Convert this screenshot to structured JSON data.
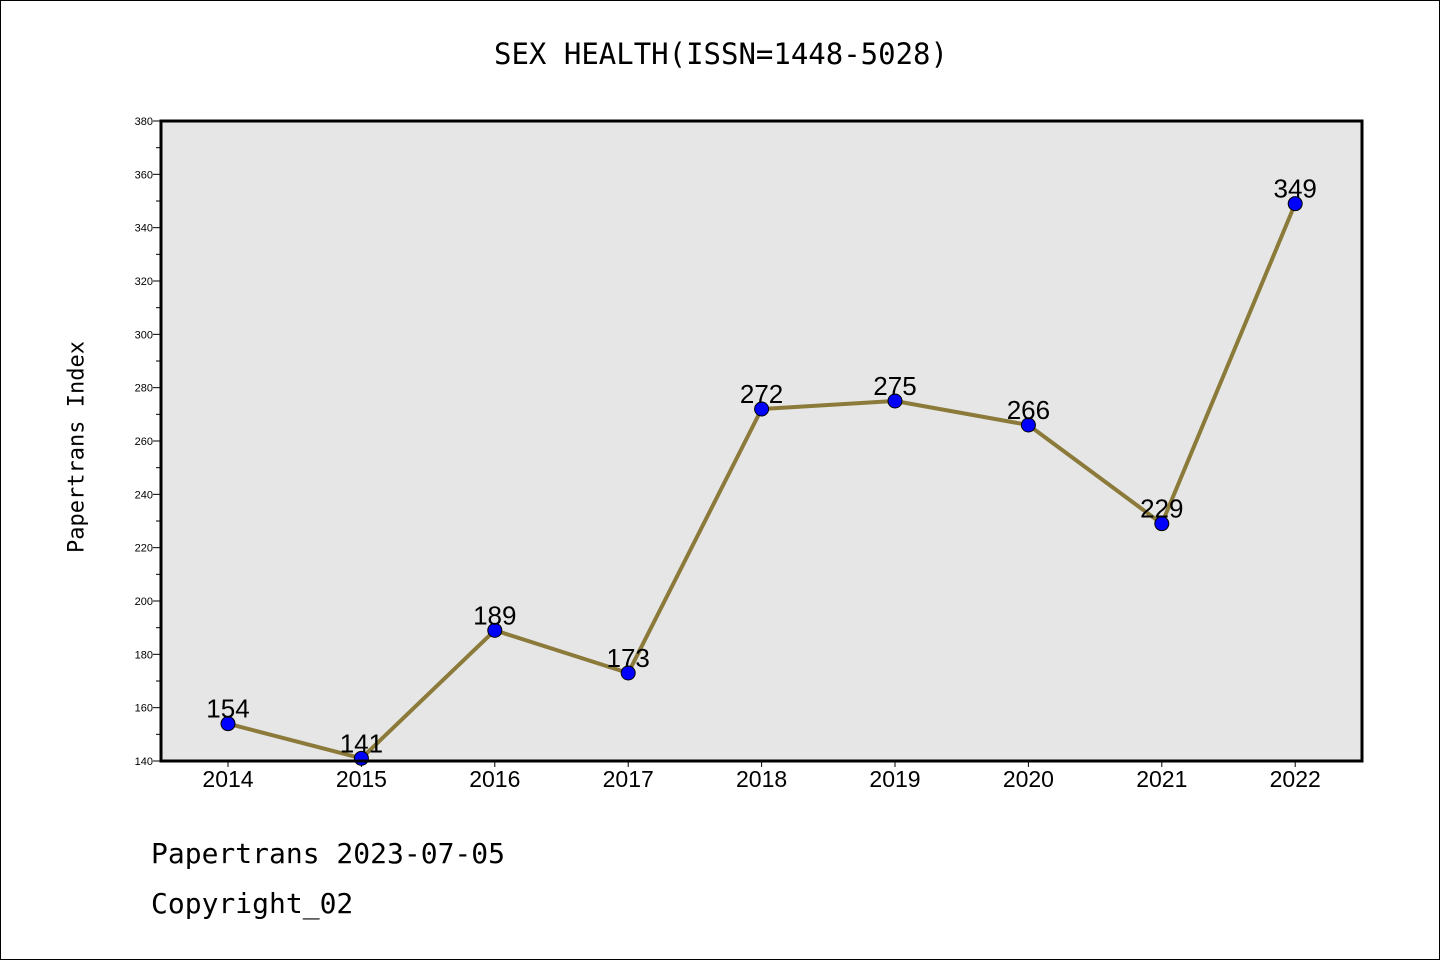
{
  "title": "SEX HEALTH(ISSN=1448-5028)",
  "footer": {
    "date_line": "Papertrans 2023-07-05",
    "copyright": "Copyright_02"
  },
  "chart_data": {
    "type": "line",
    "title": "SEX HEALTH(ISSN=1448-5028)",
    "xlabel": "",
    "ylabel": "Papertrans Index",
    "categories": [
      "2014",
      "2015",
      "2016",
      "2017",
      "2018",
      "2019",
      "2020",
      "2021",
      "2022"
    ],
    "values": [
      154,
      141,
      189,
      173,
      272,
      275,
      266,
      229,
      349
    ],
    "ylim": [
      140,
      380
    ],
    "yticks": [
      140,
      160,
      180,
      200,
      220,
      240,
      260,
      280,
      300,
      320,
      340,
      360,
      380
    ],
    "grid": false,
    "legend": "none",
    "colors": {
      "line": "#8b7a3a",
      "marker": "#0000ff",
      "plot_bg": "#e6e6e6"
    }
  }
}
